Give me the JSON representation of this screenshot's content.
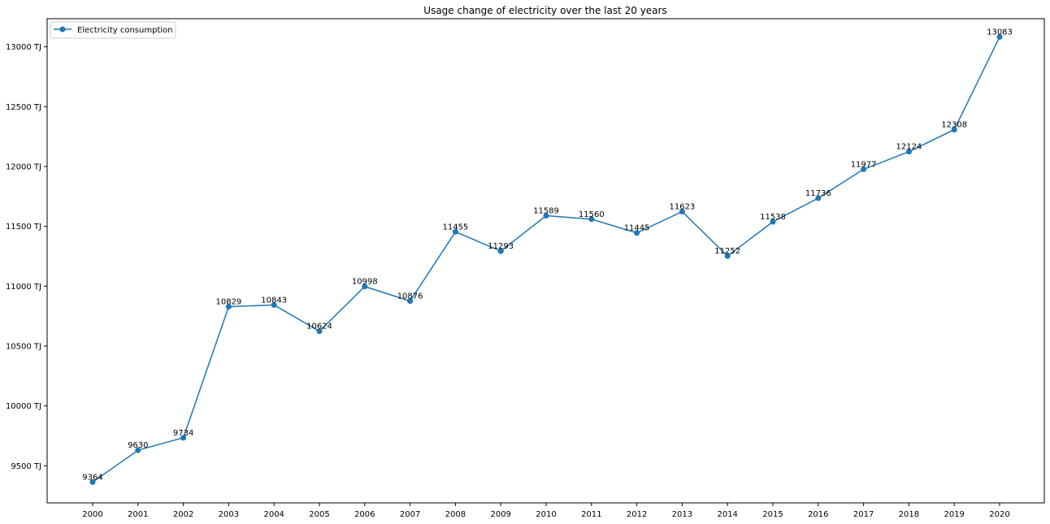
{
  "chart_data": {
    "type": "line",
    "title": "Usage change of electricity over the last 20 years",
    "xlabel": "",
    "ylabel": "",
    "x": [
      "2000",
      "2001",
      "2002",
      "2003",
      "2004",
      "2005",
      "2006",
      "2007",
      "2008",
      "2009",
      "2010",
      "2011",
      "2012",
      "2013",
      "2014",
      "2015",
      "2016",
      "2017",
      "2018",
      "2019",
      "2020"
    ],
    "series": [
      {
        "name": "Electricity consumption",
        "color": "#1f77b4",
        "marker": "circle",
        "values": [
          9364,
          9630,
          9734,
          10829,
          10843,
          10624,
          10998,
          10876,
          11455,
          11293,
          11589,
          11560,
          11445,
          11623,
          11252,
          11538,
          11736,
          11977,
          12124,
          12308,
          13083
        ]
      }
    ],
    "ylim": [
      9190,
      13235
    ],
    "yticks": [
      9500,
      10000,
      10500,
      11000,
      11500,
      12000,
      12500,
      13000
    ],
    "ytick_suffix": " TJ",
    "grid": false,
    "legend_position": "top-left",
    "data_labels": true
  }
}
